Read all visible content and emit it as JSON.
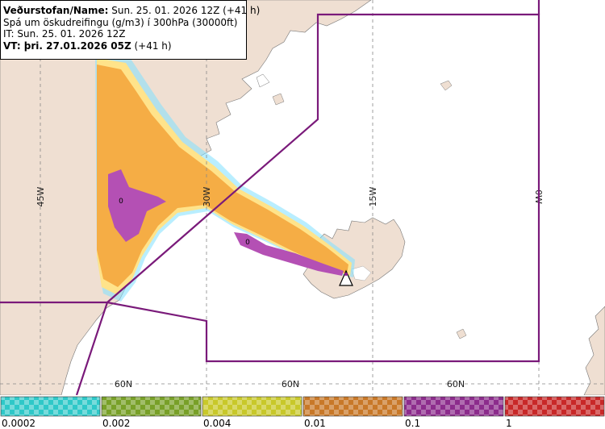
{
  "info": {
    "line1_bold": "Veðurstofan/Name:",
    "line1_rest": " Sun. 25. 01. 2026 12Z (+41 h)",
    "line2": "Spá um öskudreifingu (g/m3) í 300hPa (30000ft)",
    "line3": "IT: Sun. 25. 01. 2026 12Z",
    "line4_bold": "VT: þri. 27.01.2026 05Z",
    "line4_rest": " (+41 h)"
  },
  "grid_labels": {
    "lon_45w": "45W",
    "lon_30w": "30W",
    "lon_15w": "15W",
    "lon_0w": "0W",
    "lat_60n_a": "60N",
    "lat_60n_b": "60N",
    "lat_60n_c": "60N"
  },
  "plume_labels": {
    "greenland": "0",
    "iceland": "0"
  },
  "colorbar": {
    "levels": [
      "0.0002",
      "0.002",
      "0.004",
      "0.01",
      "0.1",
      "1"
    ],
    "colors": [
      "#2ec8c8",
      "#78a028",
      "#c8c82a",
      "#c87828",
      "#8c2c8c",
      "#c82828"
    ]
  },
  "colors": {
    "land": "#efdfd2",
    "sea": "#ffffff",
    "fir_boundary": "#7a1a7a",
    "ash_low": "#f5ad45",
    "ash_mid": "#b450b4",
    "ash_trace": "#7fe0ff",
    "ash_light": "#ffe38a"
  },
  "icons": {
    "volcano": "volcano-triangle-icon"
  }
}
